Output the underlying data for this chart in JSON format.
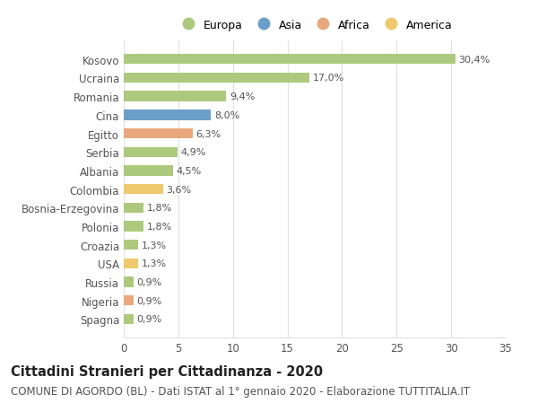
{
  "categories": [
    "Kosovo",
    "Ucraina",
    "Romania",
    "Cina",
    "Egitto",
    "Serbia",
    "Albania",
    "Colombia",
    "Bosnia-Erzegovina",
    "Polonia",
    "Croazia",
    "USA",
    "Russia",
    "Nigeria",
    "Spagna"
  ],
  "values": [
    30.4,
    17.0,
    9.4,
    8.0,
    6.3,
    4.9,
    4.5,
    3.6,
    1.8,
    1.8,
    1.3,
    1.3,
    0.9,
    0.9,
    0.9
  ],
  "labels": [
    "30,4%",
    "17,0%",
    "9,4%",
    "8,0%",
    "6,3%",
    "4,9%",
    "4,5%",
    "3,6%",
    "1,8%",
    "1,8%",
    "1,3%",
    "1,3%",
    "0,9%",
    "0,9%",
    "0,9%"
  ],
  "continents": [
    "Europa",
    "Europa",
    "Europa",
    "Asia",
    "Africa",
    "Europa",
    "Europa",
    "America",
    "Europa",
    "Europa",
    "Europa",
    "America",
    "Europa",
    "Africa",
    "Europa"
  ],
  "continent_colors": {
    "Europa": "#adc97e",
    "Asia": "#6b9ec8",
    "Africa": "#e8a87c",
    "America": "#f0c96e"
  },
  "legend_order": [
    "Europa",
    "Asia",
    "Africa",
    "America"
  ],
  "title": "Cittadini Stranieri per Cittadinanza - 2020",
  "subtitle": "COMUNE DI AGORDO (BL) - Dati ISTAT al 1° gennaio 2020 - Elaborazione TUTTITALIA.IT",
  "xlim": [
    0,
    35
  ],
  "xticks": [
    0,
    5,
    10,
    15,
    20,
    25,
    30,
    35
  ],
  "background_color": "#ffffff",
  "grid_color": "#e0e0e0",
  "bar_height": 0.55,
  "title_fontsize": 10.5,
  "subtitle_fontsize": 8.5,
  "label_fontsize": 8,
  "tick_fontsize": 8.5,
  "legend_fontsize": 9
}
